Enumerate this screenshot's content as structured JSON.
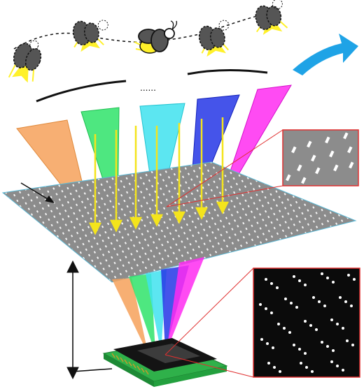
{
  "figure": {
    "ellipsis": "......",
    "colors": {
      "background": "#ffffff",
      "mask_gray": "#8c8c8c",
      "sensor_dark": "#141414",
      "beam_orange": "#f6a15a",
      "beam_green": "#2fe36a",
      "beam_cyan": "#3fe2ef",
      "beam_blue": "#2436e6",
      "beam_magenta": "#ff2bf1",
      "arrow_yellow": "#f4e41c",
      "motion_arrow": "#1fa3e6",
      "inset_border": "#e03030",
      "chip_green": "#2fb14a",
      "pin_gold": "#c49a2a"
    },
    "icons": [
      "firefly-icon",
      "motion-arrow-icon",
      "inset-mask-zoom",
      "inset-sensor-zoom",
      "image-sensor-chip"
    ]
  }
}
